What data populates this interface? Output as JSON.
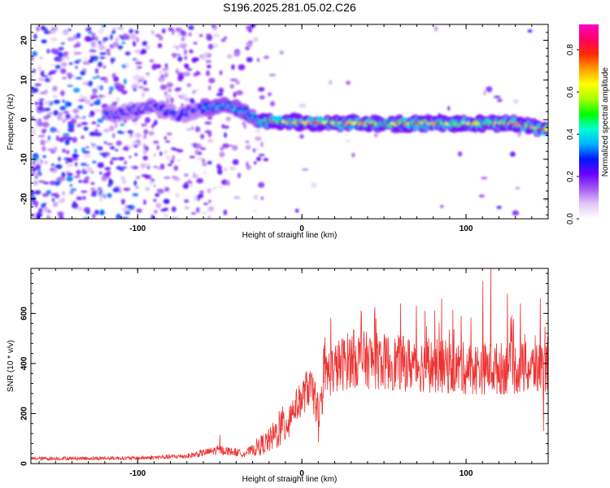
{
  "title": "S196.2025.281.05.02.C26",
  "chart_data": [
    {
      "type": "heatmap",
      "xlabel": "Height of straight line (km)",
      "ylabel": "Frequency (Hz)",
      "xlim": [
        -165,
        150
      ],
      "ylim": [
        -25,
        24
      ],
      "xticks": [
        -100,
        0,
        100
      ],
      "yticks": [
        -20,
        -10,
        0,
        10,
        20
      ],
      "xtick_labels": [
        "-100",
        "0",
        "100"
      ],
      "ytick_labels": [
        "-20",
        "-10",
        "0",
        "10",
        "20"
      ],
      "ridge": [
        {
          "x": -110,
          "y": 1.5
        },
        {
          "x": -90,
          "y": 3.5
        },
        {
          "x": -75,
          "y": 1.0
        },
        {
          "x": -60,
          "y": 3.0
        },
        {
          "x": -45,
          "y": 3.5
        },
        {
          "x": -35,
          "y": 2.0
        },
        {
          "x": -25,
          "y": -0.5
        },
        {
          "x": -10,
          "y": -0.5
        },
        {
          "x": 0,
          "y": -0.7
        },
        {
          "x": 50,
          "y": -1.0
        },
        {
          "x": 100,
          "y": -1.0
        },
        {
          "x": 130,
          "y": -1.0
        },
        {
          "x": 148,
          "y": -2.5
        }
      ],
      "colorbar": {
        "label": "Normalized spectral amplitude",
        "range": [
          0.0,
          0.92
        ],
        "ticks": [
          0.0,
          0.2,
          0.4,
          0.6,
          0.8
        ],
        "tick_labels": [
          "0.0",
          "0.2",
          "0.4",
          "0.6",
          "0.8"
        ],
        "colors": [
          "#ffffff",
          "#e3c7f7",
          "#a35cf0",
          "#6a00ff",
          "#0018ff",
          "#00b4ff",
          "#00ffd0",
          "#00ff00",
          "#a8ff00",
          "#ffff00",
          "#ffa000",
          "#ff2a00",
          "#ff0064",
          "#ff00c8"
        ]
      }
    },
    {
      "type": "line",
      "xlabel": "Height of straight line (km)",
      "ylabel": "SNR (10 * v/v)",
      "xlim": [
        -165,
        150
      ],
      "ylim": [
        0,
        780
      ],
      "xticks": [
        -100,
        0,
        100
      ],
      "yticks": [
        0,
        200,
        400,
        600
      ],
      "xtick_labels": [
        "-100",
        "0",
        "100"
      ],
      "ytick_labels": [
        "0",
        "200",
        "400",
        "600"
      ],
      "line_color": "#ee3333",
      "trend": [
        {
          "x": -165,
          "y": 20
        },
        {
          "x": -100,
          "y": 22
        },
        {
          "x": -70,
          "y": 30
        },
        {
          "x": -50,
          "y": 55
        },
        {
          "x": -35,
          "y": 40
        },
        {
          "x": -20,
          "y": 90
        },
        {
          "x": -10,
          "y": 160
        },
        {
          "x": -5,
          "y": 220
        },
        {
          "x": 0,
          "y": 260
        },
        {
          "x": 5,
          "y": 320
        },
        {
          "x": 10,
          "y": 180
        },
        {
          "x": 15,
          "y": 360
        },
        {
          "x": 30,
          "y": 420
        },
        {
          "x": 60,
          "y": 400
        },
        {
          "x": 100,
          "y": 380
        },
        {
          "x": 150,
          "y": 380
        }
      ],
      "spikes": [
        {
          "x": 45,
          "y": 580
        },
        {
          "x": 60,
          "y": 640
        },
        {
          "x": 75,
          "y": 610
        },
        {
          "x": 85,
          "y": 660
        },
        {
          "x": 97,
          "y": 590
        },
        {
          "x": 110,
          "y": 730
        },
        {
          "x": 115,
          "y": 780
        },
        {
          "x": 125,
          "y": 680
        },
        {
          "x": 133,
          "y": 640
        },
        {
          "x": 145,
          "y": 660
        },
        {
          "x": 147,
          "y": 130
        },
        {
          "x": 10,
          "y": 85
        },
        {
          "x": -14,
          "y": 210
        },
        {
          "x": -50,
          "y": 115
        },
        {
          "x": 5,
          "y": 370
        }
      ]
    }
  ]
}
